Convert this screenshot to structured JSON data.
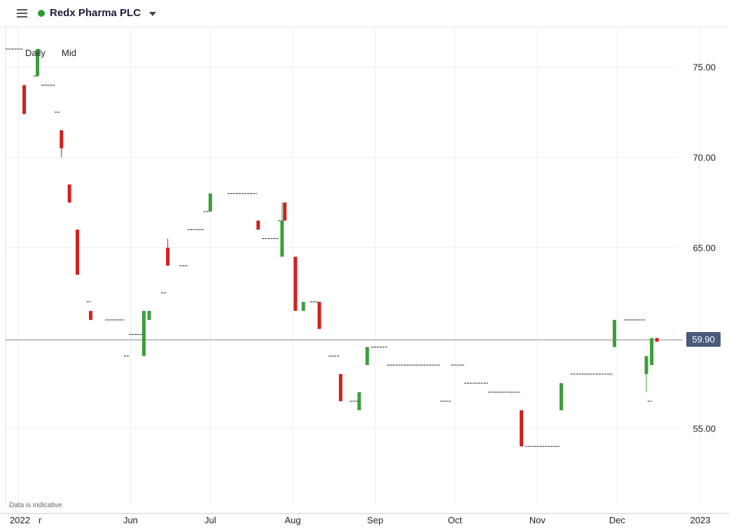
{
  "header": {
    "title": "Redx Pharma PLC",
    "status_color": "#2e9b3a"
  },
  "intervals": {
    "daily": "Daily",
    "mid": "Mid"
  },
  "footer": {
    "disclaimer": "Data is indicative"
  },
  "current_price": "59.90",
  "chart_data": {
    "type": "candlestick",
    "title": "Redx Pharma PLC",
    "y_axis_side": "right",
    "y_ticks": [
      55,
      65,
      70,
      75
    ],
    "y_tick_labels": [
      "55.00",
      "65.00",
      "70.00",
      "75.00"
    ],
    "ylim": [
      50.75,
      77.2
    ],
    "x_tick_labels": [
      {
        "label": "2022",
        "date": "2022-01-01"
      },
      {
        "label": "r",
        "date": "2022-04-01"
      },
      {
        "label": "Jun",
        "date": "2022-06-01"
      },
      {
        "label": "Jul",
        "date": "2022-07-01"
      },
      {
        "label": "Aug",
        "date": "2022-08-01"
      },
      {
        "label": "Sep",
        "date": "2022-09-01"
      },
      {
        "label": "Oct",
        "date": "2022-10-01"
      },
      {
        "label": "Nov",
        "date": "2022-11-01"
      },
      {
        "label": "Dec",
        "date": "2022-12-01"
      },
      {
        "label": "2023",
        "date": "2023-01-01"
      }
    ],
    "current_price_line": 59.9,
    "up_color": "#3c9e3c",
    "down_color": "#d42020",
    "flat_color": "#222222",
    "candles": [
      {
        "date": "2022-04-19",
        "open": 76.0,
        "close": 76.0
      },
      {
        "date": "2022-04-22",
        "open": 74.0,
        "close": 72.4
      },
      {
        "date": "2022-04-26",
        "open": 74.5,
        "close": 74.5
      },
      {
        "date": "2022-04-27",
        "open": 74.5,
        "close": 76.0
      },
      {
        "date": "2022-04-29",
        "open": 74.0,
        "close": 74.0
      },
      {
        "date": "2022-05-04",
        "open": 72.5,
        "close": 72.5
      },
      {
        "date": "2022-05-06",
        "open": 71.5,
        "close": 70.5,
        "low": 70.0
      },
      {
        "date": "2022-05-09",
        "open": 68.5,
        "close": 67.5
      },
      {
        "date": "2022-05-12",
        "open": 66.0,
        "close": 63.5
      },
      {
        "date": "2022-05-16",
        "open": 62.0,
        "close": 62.0
      },
      {
        "date": "2022-05-17",
        "open": 61.5,
        "close": 61.0
      },
      {
        "date": "2022-05-23",
        "open": 61.0,
        "close": 61.0
      },
      {
        "date": "2022-05-30",
        "open": 59.0,
        "close": 59.0
      },
      {
        "date": "2022-06-01",
        "open": 60.2,
        "close": 60.2
      },
      {
        "date": "2022-06-06",
        "open": 59.0,
        "close": 61.5
      },
      {
        "date": "2022-06-08",
        "open": 61.0,
        "close": 61.5
      },
      {
        "date": "2022-06-13",
        "open": 62.5,
        "close": 62.5
      },
      {
        "date": "2022-06-15",
        "open": 65.0,
        "close": 64.0,
        "high": 65.5
      },
      {
        "date": "2022-06-20",
        "open": 64.0,
        "close": 64.0
      },
      {
        "date": "2022-06-23",
        "open": 66.0,
        "close": 66.0
      },
      {
        "date": "2022-06-29",
        "open": 67.0,
        "close": 67.0
      },
      {
        "date": "2022-07-01",
        "open": 67.0,
        "close": 68.0
      },
      {
        "date": "2022-07-08",
        "open": 68.0,
        "close": 68.0
      },
      {
        "date": "2022-07-19",
        "open": 66.5,
        "close": 66.0
      },
      {
        "date": "2022-07-21",
        "open": 65.5,
        "close": 65.5
      },
      {
        "date": "2022-07-27",
        "open": 66.5,
        "close": 66.5
      },
      {
        "date": "2022-07-28",
        "open": 64.5,
        "close": 66.5,
        "high": 67.5
      },
      {
        "date": "2022-07-29",
        "open": 67.5,
        "close": 66.5
      },
      {
        "date": "2022-08-02",
        "open": 64.5,
        "close": 61.5
      },
      {
        "date": "2022-08-05",
        "open": 61.5,
        "close": 62.0
      },
      {
        "date": "2022-08-08",
        "open": 62.0,
        "close": 62.0
      },
      {
        "date": "2022-08-11",
        "open": 62.0,
        "close": 60.5
      },
      {
        "date": "2022-08-15",
        "open": 59.0,
        "close": 59.0
      },
      {
        "date": "2022-08-19",
        "open": 58.0,
        "close": 56.5
      },
      {
        "date": "2022-08-23",
        "open": 56.5,
        "close": 56.5
      },
      {
        "date": "2022-08-26",
        "open": 56.0,
        "close": 57.0
      },
      {
        "date": "2022-08-29",
        "open": 58.5,
        "close": 59.5
      },
      {
        "date": "2022-08-31",
        "open": 59.5,
        "close": 59.5
      },
      {
        "date": "2022-09-06",
        "open": 58.5,
        "close": 58.5
      },
      {
        "date": "2022-09-23",
        "open": 58.5,
        "close": 58.5
      },
      {
        "date": "2022-09-26",
        "open": 56.5,
        "close": 56.5
      },
      {
        "date": "2022-09-30",
        "open": 58.5,
        "close": 58.5
      },
      {
        "date": "2022-10-05",
        "open": 57.5,
        "close": 57.5
      },
      {
        "date": "2022-10-14",
        "open": 57.0,
        "close": 57.0
      },
      {
        "date": "2022-10-26",
        "open": 56.0,
        "close": 54.0
      },
      {
        "date": "2022-10-28",
        "open": 54.0,
        "close": 54.0
      },
      {
        "date": "2022-11-10",
        "open": 56.0,
        "close": 57.5
      },
      {
        "date": "2022-11-14",
        "open": 58.0,
        "close": 58.0
      },
      {
        "date": "2022-11-30",
        "open": 59.5,
        "close": 61.0
      },
      {
        "date": "2022-12-04",
        "open": 61.0,
        "close": 61.0
      },
      {
        "date": "2022-12-12",
        "open": 58.0,
        "close": 59.0,
        "low": 57.0
      },
      {
        "date": "2022-12-13",
        "open": 56.5,
        "close": 56.5
      },
      {
        "date": "2022-12-14",
        "open": 58.5,
        "close": 60.0
      },
      {
        "date": "2022-12-16",
        "open": 60.0,
        "close": 59.8
      }
    ]
  }
}
